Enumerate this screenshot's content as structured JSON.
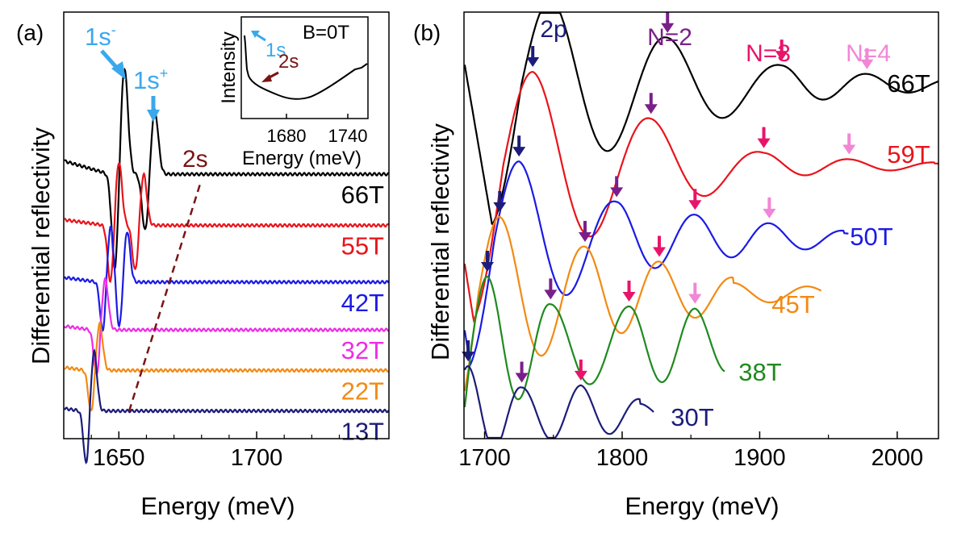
{
  "panel_a": {
    "label": "(a)",
    "ylabel": "Differential reflectivity",
    "xlabel": "Energy (meV)",
    "chart_data": {
      "type": "line",
      "title": "",
      "xlabel": "Energy (meV)",
      "ylabel": "Differential reflectivity",
      "xlim": [
        1630,
        1748
      ],
      "ylim": [
        0,
        1
      ],
      "x_ticks": [
        "1650",
        "1700"
      ],
      "series": [
        {
          "name": "66T",
          "color": "#000000",
          "baseline": 0.62,
          "lines": [
            {
              "c": 1652,
              "a": 0.25,
              "w": 1.8
            },
            {
              "c": 1663,
              "a": 0.15,
              "w": 1.8
            }
          ],
          "x_end": 1748
        },
        {
          "name": "55T",
          "color": "#e8141b",
          "baseline": 0.5,
          "lines": [
            {
              "c": 1650,
              "a": 0.15,
              "w": 1.6
            },
            {
              "c": 1659,
              "a": 0.12,
              "w": 1.6
            }
          ],
          "x_end": 1748
        },
        {
          "name": "42T",
          "color": "#1a1ae6",
          "baseline": 0.367,
          "lines": [
            {
              "c": 1647,
              "a": 0.13,
              "w": 1.5
            },
            {
              "c": 1653,
              "a": 0.12,
              "w": 1.5
            }
          ],
          "x_end": 1748
        },
        {
          "name": "32T",
          "color": "#ee2ce6",
          "baseline": 0.255,
          "lines": [
            {
              "c": 1645,
              "a": 0.12,
              "w": 1.6
            }
          ],
          "x_end": 1748
        },
        {
          "name": "22T",
          "color": "#f28a13",
          "baseline": 0.16,
          "lines": [
            {
              "c": 1643,
              "a": 0.11,
              "w": 1.6
            }
          ],
          "x_end": 1748
        },
        {
          "name": "13T",
          "color": "#1c1c7a",
          "baseline": 0.065,
          "lines": [
            {
              "c": 1641,
              "a": 0.14,
              "w": 1.5
            }
          ],
          "x_end": 1748
        }
      ],
      "annotations": [
        {
          "text": "1s⁻",
          "target": "1s- peak"
        },
        {
          "text": "1s⁺",
          "target": "1s+ peak"
        },
        {
          "text": "2s",
          "target": "2s trend line"
        }
      ]
    },
    "ann_1s_minus": "1s",
    "ann_minus_sup": "-",
    "ann_1s_plus": "1s",
    "ann_plus_sup": "+",
    "ann_2s": "2s",
    "inset": {
      "ylabel": "Intensity",
      "xlabel": "Energy (meV)",
      "title": "B=0T",
      "label_1s": "1s",
      "label_2s": "2s",
      "x_ticks": [
        "1680",
        "1740"
      ]
    }
  },
  "panel_b": {
    "label": "(b)",
    "ylabel": "Differential reflectivity",
    "xlabel": "Energy (meV)",
    "chart_data": {
      "type": "line",
      "title": "",
      "xlabel": "Energy (meV)",
      "ylabel": "Differential reflectivity",
      "xlim": [
        1685,
        2030
      ],
      "ylim": [
        0,
        1
      ],
      "x_ticks": [
        "1700",
        "1800",
        "1900",
        "2000"
      ],
      "series": [
        {
          "name": "66T",
          "color": "#000000",
          "baseline": 0.83,
          "peaks": [
            1748,
            1833,
            1916,
            1978
          ],
          "amps": [
            0.2,
            0.11,
            0.045,
            0.025
          ],
          "x_end": 2030
        },
        {
          "name": "59T",
          "color": "#e8141b",
          "baseline": 0.64,
          "peaks": [
            1735,
            1821,
            1903,
            1965
          ],
          "amps": [
            0.22,
            0.11,
            0.03,
            0.015
          ],
          "x_end": 2030
        },
        {
          "name": "50T",
          "color": "#1a1ae6",
          "baseline": 0.47,
          "peaks": [
            1725,
            1796,
            1853,
            1907
          ],
          "amps": [
            0.18,
            0.085,
            0.055,
            0.035
          ],
          "x_end": 1965
        },
        {
          "name": "45T",
          "color": "#f28a13",
          "baseline": 0.34,
          "peaks": [
            1711,
            1773,
            1827
          ],
          "amps": [
            0.18,
            0.11,
            0.075
          ],
          "x_end": 1945
        },
        {
          "name": "38T",
          "color": "#1f8a1f",
          "baseline": 0.22,
          "peaks": [
            1702,
            1748,
            1805,
            1853
          ],
          "amps": [
            0.16,
            0.095,
            0.09,
            0.085
          ],
          "x_end": 1875
        },
        {
          "name": "30T",
          "color": "#1c1c7a",
          "baseline": 0.06,
          "peaks": [
            1688,
            1727,
            1770
          ],
          "amps": [
            0.11,
            0.06,
            0.065
          ],
          "x_end": 1823
        }
      ],
      "markers": [
        {
          "series": "66T",
          "level": "2p",
          "x": 1748,
          "color": "#1c1c7a"
        },
        {
          "series": "66T",
          "level": "N=2",
          "x": 1833,
          "color": "#7a1f8a"
        },
        {
          "series": "66T",
          "level": "N=3",
          "x": 1916,
          "color": "#e8146a"
        },
        {
          "series": "66T",
          "level": "N=4",
          "x": 1978,
          "color": "#f286d6"
        },
        {
          "series": "59T",
          "level": "2p",
          "x": 1735,
          "color": "#1c1c7a"
        },
        {
          "series": "59T",
          "level": "N=2",
          "x": 1821,
          "color": "#7a1f8a"
        },
        {
          "series": "59T",
          "level": "N=3",
          "x": 1903,
          "color": "#e8146a"
        },
        {
          "series": "59T",
          "level": "N=4",
          "x": 1965,
          "color": "#f286d6"
        },
        {
          "series": "50T",
          "level": "2p",
          "x": 1725,
          "color": "#1c1c7a"
        },
        {
          "series": "50T",
          "level": "N=2",
          "x": 1796,
          "color": "#7a1f8a"
        },
        {
          "series": "50T",
          "level": "N=3",
          "x": 1853,
          "color": "#e8146a"
        },
        {
          "series": "50T",
          "level": "N=4",
          "x": 1907,
          "color": "#f286d6"
        },
        {
          "series": "45T",
          "level": "2p",
          "x": 1711,
          "color": "#1c1c7a"
        },
        {
          "series": "45T",
          "level": "N=2",
          "x": 1773,
          "color": "#7a1f8a"
        },
        {
          "series": "45T",
          "level": "N=3",
          "x": 1827,
          "color": "#e8146a"
        },
        {
          "series": "38T",
          "level": "2p",
          "x": 1702,
          "color": "#1c1c7a"
        },
        {
          "series": "38T",
          "level": "N=2",
          "x": 1748,
          "color": "#7a1f8a"
        },
        {
          "series": "38T",
          "level": "N=3",
          "x": 1805,
          "color": "#e8146a"
        },
        {
          "series": "38T",
          "level": "N=4",
          "x": 1853,
          "color": "#f286d6"
        },
        {
          "series": "30T",
          "level": "2p",
          "x": 1688,
          "color": "#1c1c7a"
        },
        {
          "series": "30T",
          "level": "N=2",
          "x": 1727,
          "color": "#7a1f8a"
        },
        {
          "series": "30T",
          "level": "N=3",
          "x": 1770,
          "color": "#e8146a"
        }
      ],
      "level_labels": [
        {
          "text": "2p",
          "color": "#1c1c7a"
        },
        {
          "text": "N=2",
          "color": "#7a1f8a"
        },
        {
          "text": "N=3",
          "color": "#e8146a"
        },
        {
          "text": "N=4",
          "color": "#f286d6"
        }
      ]
    }
  },
  "colors": {
    "ann_light_blue": "#3aa8ec",
    "ann_dark_red": "#7a1414",
    "axis": "#000000"
  }
}
